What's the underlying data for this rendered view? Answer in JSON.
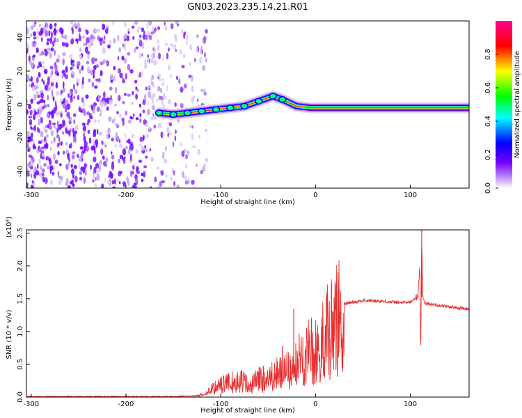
{
  "title": "GN03.2023.235.14.21.R01",
  "chart_data": [
    {
      "type": "heatmap",
      "xlabel": "Height of straight line (km)",
      "ylabel": "Frequency (Hz)",
      "xlim": [
        -305,
        162
      ],
      "ylim": [
        -50,
        50
      ],
      "xticks": [
        -300,
        -200,
        -100,
        0,
        100
      ],
      "yticks": [
        -40,
        -20,
        0,
        20,
        40
      ],
      "colorbar": {
        "label": "Normalized spectral amplitude",
        "range": [
          0,
          1
        ],
        "ticks": [
          "0.0",
          "0.2",
          "0.4",
          "0.6",
          "0.8"
        ],
        "colormap": [
          "#ffffff",
          "#a070e8",
          "#6a00ff",
          "#0000ff",
          "#00ffff",
          "#00ff00",
          "#ffff00",
          "#ff0000",
          "#ff00a0"
        ]
      },
      "noise_region": {
        "x": [
          -305,
          -125
        ],
        "note": "scattered purple noise across all frequencies"
      },
      "signal_trace": [
        {
          "x": -165,
          "y": -5
        },
        {
          "x": -150,
          "y": -6
        },
        {
          "x": -135,
          "y": -5
        },
        {
          "x": -120,
          "y": -4
        },
        {
          "x": -105,
          "y": -3
        },
        {
          "x": -90,
          "y": -2
        },
        {
          "x": -75,
          "y": -1
        },
        {
          "x": -60,
          "y": 2
        },
        {
          "x": -45,
          "y": 5
        },
        {
          "x": -35,
          "y": 3
        },
        {
          "x": -20,
          "y": -1
        },
        {
          "x": -5,
          "y": -2
        },
        {
          "x": 10,
          "y": -2
        },
        {
          "x": 40,
          "y": -2
        },
        {
          "x": 70,
          "y": -2
        },
        {
          "x": 100,
          "y": -2
        },
        {
          "x": 130,
          "y": -2
        },
        {
          "x": 162,
          "y": -2
        }
      ]
    },
    {
      "type": "line",
      "xlabel": "Height of straight line (km)",
      "ylabel": "SNR (10 * v/v)",
      "yscale_label": "(x10⁴)",
      "xlim": [
        -305,
        162
      ],
      "ylim": [
        0,
        2.55
      ],
      "xticks": [
        -300,
        -200,
        -100,
        0,
        100
      ],
      "yticks": [
        "0.0",
        "0.5",
        "1.0",
        "1.5",
        "2.0",
        "2.5"
      ],
      "color": "#e83030",
      "series": [
        {
          "x": [
            -305,
            -250,
            -200,
            -150,
            -125,
            -115,
            -108,
            -100,
            -90,
            -80,
            -70,
            -60,
            -50,
            -40,
            -30,
            -25,
            -22,
            -20,
            -15,
            -10,
            -5,
            0,
            5,
            10,
            15,
            20,
            25,
            30,
            40,
            50,
            60,
            70,
            80,
            90,
            100,
            105,
            108,
            110,
            111,
            112,
            113,
            115,
            120,
            140,
            162
          ],
          "y": [
            0.01,
            0.01,
            0.01,
            0.01,
            0.02,
            0.08,
            0.15,
            0.2,
            0.25,
            0.3,
            0.2,
            0.3,
            0.35,
            0.4,
            0.45,
            0.5,
            0.45,
            0.6,
            0.7,
            0.75,
            0.8,
            0.85,
            0.95,
            1.1,
            1.2,
            1.3,
            1.4,
            1.42,
            1.45,
            1.47,
            1.47,
            1.46,
            1.45,
            1.44,
            1.45,
            1.5,
            1.55,
            2.0,
            0.55,
            2.55,
            1.58,
            1.44,
            1.42,
            1.38,
            1.34
          ]
        }
      ],
      "spikes": [
        {
          "x": -35,
          "y": 0.78
        },
        {
          "x": -23,
          "y": 1.35
        },
        {
          "x": 112,
          "y": 2.55
        }
      ]
    }
  ]
}
